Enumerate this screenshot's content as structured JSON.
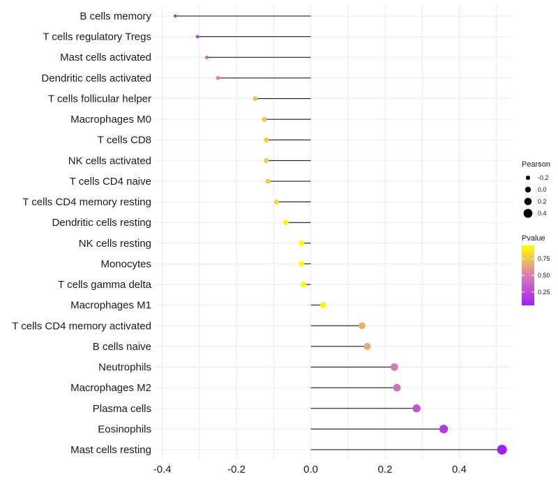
{
  "chart_data": {
    "type": "lollipop",
    "title": "",
    "xlabel": "",
    "ylabel": "",
    "xlim": [
      -0.42,
      0.54
    ],
    "x_ticks": [
      -0.4,
      -0.2,
      0.0,
      0.2,
      0.4
    ],
    "x_tick_labels": [
      "-0.4",
      "-0.2",
      "0.0",
      "0.2",
      "0.4"
    ],
    "grid": true,
    "categories": [
      "B cells memory",
      "T cells regulatory  Tregs",
      "Mast cells activated",
      "Dendritic cells activated",
      "T cells follicular helper",
      "Macrophages M0",
      "T cells CD8",
      "NK cells activated",
      "T cells CD4 naive",
      "T cells CD4 memory resting",
      "Dendritic cells resting",
      "NK cells resting",
      "Monocytes",
      "T cells gamma delta",
      "Macrophages M1",
      "T cells CD4 memory activated",
      "B cells naive",
      "Neutrophils",
      "Macrophages M2",
      "Plasma cells",
      "Eosinophils",
      "Mast cells resting"
    ],
    "values": [
      -0.365,
      -0.305,
      -0.28,
      -0.25,
      -0.15,
      -0.125,
      -0.12,
      -0.12,
      -0.115,
      -0.092,
      -0.067,
      -0.025,
      -0.025,
      -0.02,
      0.033,
      0.138,
      0.152,
      0.225,
      0.232,
      0.285,
      0.358,
      0.515
    ],
    "pvalues": [
      0.1,
      0.25,
      0.4,
      0.5,
      0.72,
      0.75,
      0.77,
      0.77,
      0.78,
      0.82,
      0.9,
      0.98,
      0.98,
      0.97,
      0.92,
      0.68,
      0.65,
      0.48,
      0.45,
      0.32,
      0.18,
      0.05
    ],
    "legend": {
      "size_title": "Pearson",
      "size_values": [
        -0.2,
        0.0,
        0.2,
        0.4
      ],
      "size_labels": [
        "-0.2",
        "0.0",
        "0.2",
        "0.4"
      ],
      "color_title": "Pvalue",
      "color_ticks": [
        0.75,
        0.5,
        0.25
      ],
      "color_tick_labels": [
        "0.75",
        "0.50",
        "0.25"
      ],
      "color_range": [
        0.05,
        0.95
      ],
      "color_low": "#a020f0",
      "color_mid": "#d77fb8",
      "color_high": "#ffff00",
      "placement": "right"
    }
  }
}
